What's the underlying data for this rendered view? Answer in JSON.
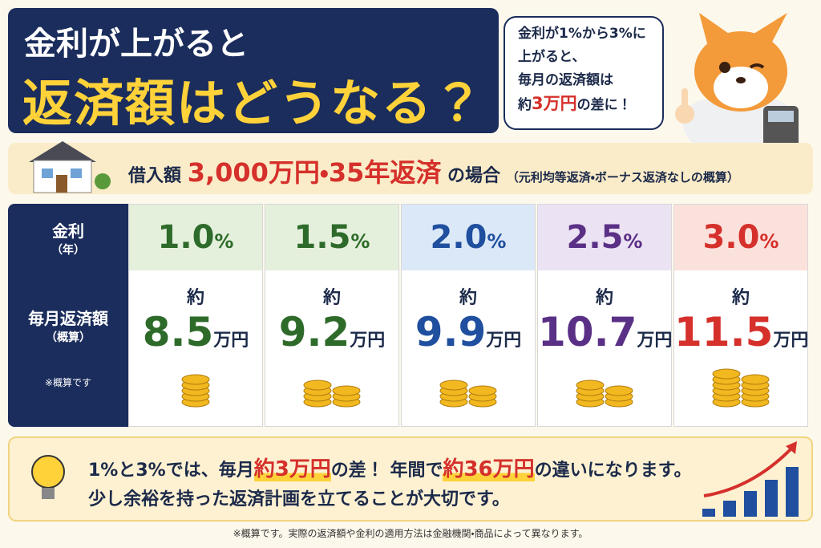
{
  "header": {
    "title_line1": "金利が上がると",
    "title_line2": "返済額はどうなる？",
    "bubble": {
      "lines": [
        "金利が1%から3%に",
        "上がると、",
        "毎月の返済額は"
      ],
      "last": [
        "約",
        "3万円",
        "の差に！"
      ]
    }
  },
  "condition": {
    "parts": [
      "借入額",
      "3,000万円",
      "・",
      "35年返済",
      "の場合",
      "（元利均等返済・ボーナス返済なしの概算）"
    ]
  },
  "table": {
    "row_labels": [
      {
        "main": "金利",
        "sub": "（年）"
      },
      {
        "main": "毎月返済額",
        "sub": "（概算）"
      }
    ],
    "note": "※概算です",
    "columns": [
      {
        "rate": "1.0",
        "unit": "%",
        "approx": "約",
        "amount": "8.5",
        "amount_unit": "万円",
        "color": "#2e6b2a",
        "bg": "#e4f0dc"
      },
      {
        "rate": "1.5",
        "unit": "%",
        "approx": "約",
        "amount": "9.2",
        "amount_unit": "万円",
        "color": "#2e6b2a",
        "bg": "#e4f0dc"
      },
      {
        "rate": "2.0",
        "unit": "%",
        "approx": "約",
        "amount": "9.9",
        "amount_unit": "万円",
        "color": "#1f4f9e",
        "bg": "#dbe8f7"
      },
      {
        "rate": "2.5",
        "unit": "%",
        "approx": "約",
        "amount": "10.7",
        "amount_unit": "万円",
        "color": "#5a2f86",
        "bg": "#ebe2f3"
      },
      {
        "rate": "3.0",
        "unit": "%",
        "approx": "約",
        "amount": "11.5",
        "amount_unit": "万円",
        "color": "#d5302b",
        "bg": "#fbe1dc"
      }
    ]
  },
  "summary": {
    "line1": [
      "1%と3%では、毎月",
      "約3万円",
      "の差！ 年間で",
      "約36万円",
      "の違いになります。"
    ],
    "line2": "少し余裕を持った返済計画を立てることが大切です。"
  },
  "footer": "※概算です。実際の返済額や金利の適用方法は金融機関・商品によって異なります。"
}
